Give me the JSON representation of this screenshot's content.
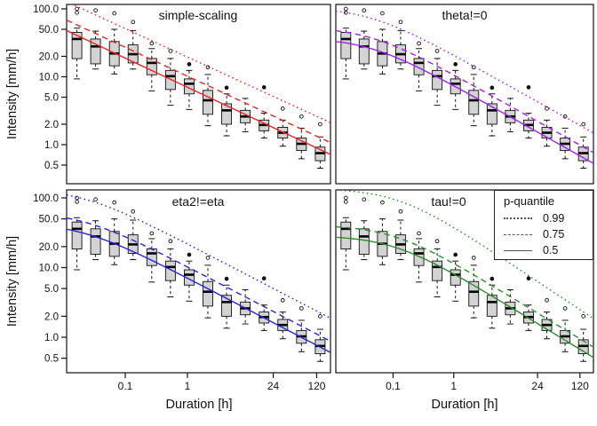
{
  "chart_data": {
    "type": "boxplot",
    "layout": "2x2-panels",
    "xlabel": "Duration [h]",
    "ylabel": "Intensity [mm/h]",
    "x_scale": "log",
    "y_scale": "log",
    "x_range": [
      0.0114,
      200
    ],
    "y_range": [
      0.28,
      120
    ],
    "grid": false,
    "x_ticks": {
      "values": [
        0.1,
        1,
        24,
        120
      ],
      "labels": [
        "0.1",
        "1",
        "24",
        "120"
      ]
    },
    "y_ticks": {
      "values": [
        100,
        50,
        20,
        10,
        5,
        2,
        1,
        0.5
      ],
      "labels": [
        "100.0",
        "50.0",
        "20.0",
        "10.0",
        "5.0",
        "2.0",
        "1.0",
        "0.5"
      ]
    },
    "legend": {
      "title": "p-quantile",
      "entries": [
        {
          "label": "0.99",
          "style": "dotted"
        },
        {
          "label": "0.75",
          "style": "dashed"
        },
        {
          "label": "0.5",
          "style": "solid"
        }
      ]
    },
    "box_fill": "#d3d3d3",
    "panels": [
      {
        "title": "simple-scaling",
        "color": "#ee2020",
        "curves": [
          {
            "p": 0.5,
            "style": "solid",
            "a": 7.0,
            "theta": 0,
            "eta": 0.43
          },
          {
            "p": 0.75,
            "style": "dashed",
            "a": 10.2,
            "theta": 0,
            "eta": 0.425
          },
          {
            "p": 0.99,
            "style": "dotted",
            "a": 19.5,
            "theta": 0,
            "eta": 0.42
          }
        ]
      },
      {
        "title": "theta!=0",
        "color": "#a020f0",
        "curves": [
          {
            "p": 0.5,
            "style": "solid",
            "a": 7.5,
            "theta": 0.04,
            "eta": 0.5
          },
          {
            "p": 0.75,
            "style": "dashed",
            "a": 10.8,
            "theta": 0.04,
            "eta": 0.5
          },
          {
            "p": 0.99,
            "style": "dotted",
            "a": 21.0,
            "theta": 0.04,
            "eta": 0.5
          }
        ]
      },
      {
        "title": "eta2!=eta",
        "color": "#2525dd",
        "curves": [
          {
            "p": 0.5,
            "style": "solid",
            "a": 7.1,
            "theta": 0.02,
            "eta": 0.465
          },
          {
            "p": 0.75,
            "style": "dashed",
            "a": 10.3,
            "theta": 0.02,
            "eta": 0.465
          },
          {
            "p": 0.99,
            "style": "dotted",
            "a": 22.0,
            "theta": 0.02,
            "eta": 0.465
          }
        ]
      },
      {
        "title": "tau!=0",
        "color": "#2e8b2e",
        "curves": [
          {
            "p": 0.5,
            "style": "solid",
            "a": 8.5,
            "theta": 0.1,
            "eta": 0.53
          },
          {
            "p": 0.75,
            "style": "dashed",
            "a": 12.0,
            "theta": 0.1,
            "eta": 0.53
          },
          {
            "p": 0.99,
            "style": "dotted",
            "a": 40.0,
            "theta": 0.12,
            "eta": 0.58
          }
        ]
      }
    ],
    "boxplots": [
      {
        "d": 0.0167,
        "lo": 9.3,
        "q1": 18.5,
        "med": 36,
        "q3": 45,
        "hi": 52,
        "out": [
          88,
          100
        ],
        "out_filled": [
          false,
          false
        ]
      },
      {
        "d": 0.0333,
        "lo": 13,
        "q1": 15.5,
        "med": 28,
        "q3": 36,
        "hi": 47,
        "out": [
          95
        ],
        "out_filled": [
          false
        ]
      },
      {
        "d": 0.0667,
        "lo": 11,
        "q1": 14.5,
        "med": 22,
        "q3": 33,
        "hi": 50,
        "out": [
          86
        ],
        "out_filled": [
          false
        ]
      },
      {
        "d": 0.1333,
        "lo": 13,
        "q1": 16,
        "med": 21.5,
        "q3": 29.5,
        "hi": 48,
        "out": [
          64
        ],
        "out_filled": [
          false
        ]
      },
      {
        "d": 0.2667,
        "lo": 6.2,
        "q1": 10.7,
        "med": 16,
        "q3": 18.6,
        "hi": 26,
        "out": [
          31
        ],
        "out_filled": [
          false
        ]
      },
      {
        "d": 0.5333,
        "lo": 3.8,
        "q1": 6.5,
        "med": 10.2,
        "q3": 12.4,
        "hi": 18.6,
        "out": [
          24
        ],
        "out_filled": [
          false
        ]
      },
      {
        "d": 1.0667,
        "lo": 3.3,
        "q1": 5.6,
        "med": 7.9,
        "q3": 9.3,
        "hi": 12.4,
        "out": [
          15.3
        ],
        "out_filled": [
          true
        ]
      },
      {
        "d": 2.1333,
        "lo": 1.9,
        "q1": 2.8,
        "med": 4.5,
        "q3": 6.3,
        "hi": 10.8,
        "out": [
          13.8
        ],
        "out_filled": [
          false
        ]
      },
      {
        "d": 4.2667,
        "lo": 1.35,
        "q1": 2.0,
        "med": 3.2,
        "q3": 4.0,
        "hi": 5.6,
        "out": [
          6.9
        ],
        "out_filled": [
          true
        ]
      },
      {
        "d": 8.5333,
        "lo": 1.55,
        "q1": 2.1,
        "med": 2.6,
        "q3": 3.2,
        "hi": 4.8,
        "out": [],
        "out_filled": []
      },
      {
        "d": 17.067,
        "lo": 1.25,
        "q1": 1.6,
        "med": 1.95,
        "q3": 2.3,
        "hi": 2.9,
        "out": [
          7.0
        ],
        "out_filled": [
          true
        ]
      },
      {
        "d": 34.133,
        "lo": 0.95,
        "q1": 1.25,
        "med": 1.5,
        "q3": 1.8,
        "hi": 2.3,
        "out": [
          3.4
        ],
        "out_filled": [
          false
        ]
      },
      {
        "d": 68.267,
        "lo": 0.62,
        "q1": 0.82,
        "med": 1.03,
        "q3": 1.25,
        "hi": 1.75,
        "out": [
          2.6
        ],
        "out_filled": [
          false
        ]
      },
      {
        "d": 136.53,
        "lo": 0.45,
        "q1": 0.58,
        "med": 0.75,
        "q3": 0.92,
        "hi": 1.3,
        "out": [
          2.0
        ],
        "out_filled": [
          false
        ]
      }
    ]
  }
}
